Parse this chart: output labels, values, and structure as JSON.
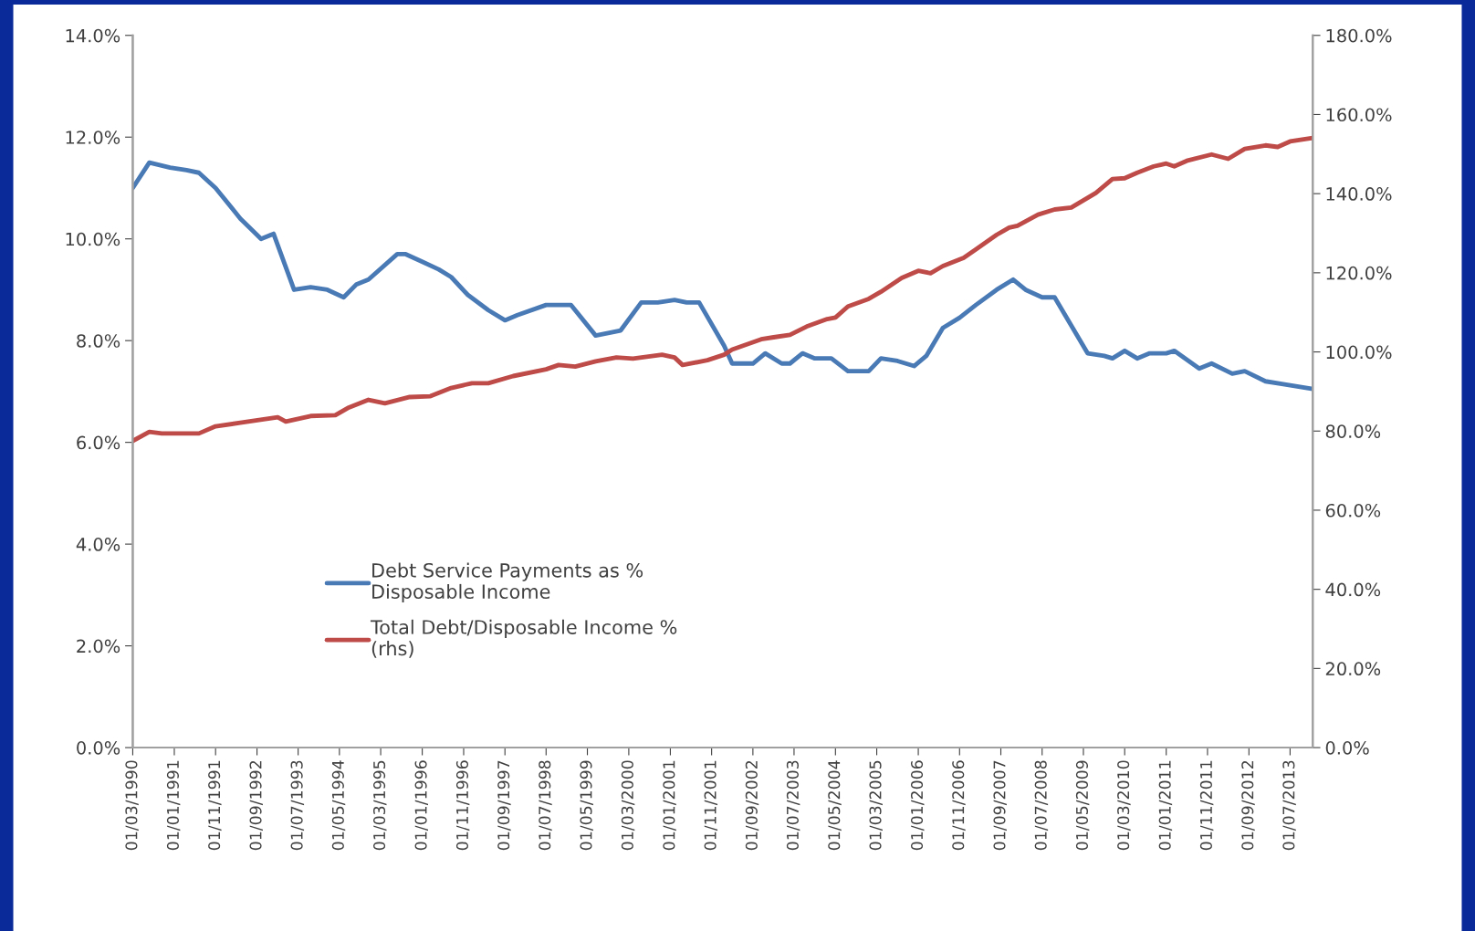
{
  "chart_data": {
    "type": "line",
    "xlim": [
      "1990-03-01",
      "2013-12-15"
    ],
    "xticks": [
      {
        "value": "1990-03-01",
        "label": "01/03/1990"
      },
      {
        "value": "1991-01-01",
        "label": "01/01/1991"
      },
      {
        "value": "1991-11-01",
        "label": "01/11/1991"
      },
      {
        "value": "1992-09-01",
        "label": "01/09/1992"
      },
      {
        "value": "1993-07-01",
        "label": "01/07/1993"
      },
      {
        "value": "1994-05-01",
        "label": "01/05/1994"
      },
      {
        "value": "1995-03-01",
        "label": "01/03/1995"
      },
      {
        "value": "1996-01-01",
        "label": "01/01/1996"
      },
      {
        "value": "1996-11-01",
        "label": "01/11/1996"
      },
      {
        "value": "1997-09-01",
        "label": "01/09/1997"
      },
      {
        "value": "1998-07-01",
        "label": "01/07/1998"
      },
      {
        "value": "1999-05-01",
        "label": "01/05/1999"
      },
      {
        "value": "2000-03-01",
        "label": "01/03/2000"
      },
      {
        "value": "2001-01-01",
        "label": "01/01/2001"
      },
      {
        "value": "2001-11-01",
        "label": "01/11/2001"
      },
      {
        "value": "2002-09-01",
        "label": "01/09/2002"
      },
      {
        "value": "2003-07-01",
        "label": "01/07/2003"
      },
      {
        "value": "2004-05-01",
        "label": "01/05/2004"
      },
      {
        "value": "2005-03-01",
        "label": "01/03/2005"
      },
      {
        "value": "2006-01-01",
        "label": "01/01/2006"
      },
      {
        "value": "2006-11-01",
        "label": "01/11/2006"
      },
      {
        "value": "2007-09-01",
        "label": "01/09/2007"
      },
      {
        "value": "2008-07-01",
        "label": "01/07/2008"
      },
      {
        "value": "2009-05-01",
        "label": "01/05/2009"
      },
      {
        "value": "2010-03-01",
        "label": "01/03/2010"
      },
      {
        "value": "2011-01-01",
        "label": "01/01/2011"
      },
      {
        "value": "2011-11-01",
        "label": "01/11/2011"
      },
      {
        "value": "2012-09-01",
        "label": "01/09/2012"
      },
      {
        "value": "2013-07-01",
        "label": "01/07/2013"
      }
    ],
    "ylim": [
      0,
      14
    ],
    "yticks": [
      {
        "value": 0,
        "label": "0.0%"
      },
      {
        "value": 2,
        "label": "2.0%"
      },
      {
        "value": 4,
        "label": "4.0%"
      },
      {
        "value": 6,
        "label": "6.0%"
      },
      {
        "value": 8,
        "label": "8.0%"
      },
      {
        "value": 10,
        "label": "10.0%"
      },
      {
        "value": 12,
        "label": "12.0%"
      },
      {
        "value": 14,
        "label": "14.0%"
      }
    ],
    "y2lim": [
      0,
      180
    ],
    "y2ticks": [
      {
        "value": 0,
        "label": "0.0%"
      },
      {
        "value": 20,
        "label": "20.0%"
      },
      {
        "value": 40,
        "label": "40.0%"
      },
      {
        "value": 60,
        "label": "60.0%"
      },
      {
        "value": 80,
        "label": "80.0%"
      },
      {
        "value": 100,
        "label": "100.0%"
      },
      {
        "value": 120,
        "label": "120.0%"
      },
      {
        "value": 140,
        "label": "140.0%"
      },
      {
        "value": 160,
        "label": "160.0%"
      },
      {
        "value": 180,
        "label": "180.0%"
      }
    ],
    "grid": false,
    "legend": "bottom left",
    "series": [
      {
        "name": "Debt Service Payments as %\nDisposable Income",
        "color": "#4a7ab5",
        "x": [
          "1990-03",
          "1990-07",
          "1990-12",
          "1991-04",
          "1991-07",
          "1991-11",
          "1992-05",
          "1992-10",
          "1993-01",
          "1993-06",
          "1993-10",
          "1994-02",
          "1994-06",
          "1994-09",
          "1994-12",
          "1995-07",
          "1995-09",
          "1996-01",
          "1996-05",
          "1996-08",
          "1996-12",
          "1997-05",
          "1997-09",
          "1997-12",
          "1998-07",
          "1999-01",
          "1999-07",
          "2000-01",
          "2000-06",
          "2000-10",
          "2001-02",
          "2001-05",
          "2001-08",
          "2002-02",
          "2002-04",
          "2002-09",
          "2002-12",
          "2003-04",
          "2003-06",
          "2003-09",
          "2003-12",
          "2004-04",
          "2004-08",
          "2005-01",
          "2005-04",
          "2005-08",
          "2005-12",
          "2006-03",
          "2006-07",
          "2006-11",
          "2007-03",
          "2007-08",
          "2007-12",
          "2008-03",
          "2008-07",
          "2008-10",
          "2009-06",
          "2009-10",
          "2009-12",
          "2010-03",
          "2010-06",
          "2010-09",
          "2011-01",
          "2011-03",
          "2011-09",
          "2011-12",
          "2012-05",
          "2012-08",
          "2013-01",
          "2013-05",
          "2013-12-15"
        ],
        "values": [
          11.0,
          11.5,
          11.4,
          11.35,
          11.3,
          11.0,
          10.4,
          10.0,
          10.1,
          9.0,
          9.05,
          9.0,
          8.85,
          9.1,
          9.2,
          9.7,
          9.7,
          9.55,
          9.4,
          9.25,
          8.9,
          8.6,
          8.4,
          8.5,
          8.7,
          8.7,
          8.1,
          8.2,
          8.75,
          8.75,
          8.8,
          8.75,
          8.75,
          7.9,
          7.55,
          7.55,
          7.75,
          7.55,
          7.55,
          7.75,
          7.65,
          7.65,
          7.4,
          7.4,
          7.65,
          7.6,
          7.5,
          7.7,
          8.25,
          8.45,
          8.7,
          9.0,
          9.2,
          9.0,
          8.85,
          8.85,
          7.75,
          7.7,
          7.65,
          7.8,
          7.65,
          7.75,
          7.75,
          7.8,
          7.45,
          7.55,
          7.35,
          7.4,
          7.2,
          7.15,
          7.05
        ]
      },
      {
        "name": "Total Debt/Disposable Income %\n(rhs)",
        "color": "#be4b48",
        "axis": "y2",
        "x": [
          "1990-03",
          "1990-07",
          "1990-10",
          "1991-07",
          "1991-11",
          "1992-05",
          "1993-02",
          "1993-04",
          "1993-10",
          "1994-04",
          "1994-07",
          "1994-12",
          "1995-04",
          "1995-10",
          "1996-03",
          "1996-08",
          "1997-01",
          "1997-05",
          "1997-11",
          "1998-07",
          "1998-10",
          "1999-02",
          "1999-07",
          "1999-12",
          "2000-04",
          "2000-11",
          "2001-02",
          "2001-04",
          "2001-10",
          "2002-02",
          "2002-04",
          "2002-11",
          "2003-02",
          "2003-06",
          "2003-10",
          "2004-03",
          "2004-05",
          "2004-08",
          "2005-01",
          "2005-04",
          "2005-09",
          "2006-01",
          "2006-04",
          "2006-07",
          "2006-12",
          "2007-03",
          "2007-08",
          "2007-11",
          "2008-01",
          "2008-06",
          "2008-10",
          "2009-02",
          "2009-08",
          "2009-12",
          "2010-03",
          "2010-06",
          "2010-10",
          "2011-01",
          "2011-03",
          "2011-06",
          "2011-12",
          "2012-04",
          "2012-08",
          "2013-01",
          "2013-04",
          "2013-07",
          "2013-12-15"
        ],
        "values": [
          77.5,
          79.8,
          79.4,
          79.4,
          81.2,
          82.1,
          83.5,
          82.4,
          83.8,
          84.0,
          85.8,
          87.9,
          87.0,
          88.6,
          88.8,
          90.9,
          92.1,
          92.1,
          93.9,
          95.6,
          96.7,
          96.3,
          97.6,
          98.6,
          98.3,
          99.3,
          98.6,
          96.7,
          97.9,
          99.3,
          100.6,
          103.2,
          103.7,
          104.3,
          106.4,
          108.3,
          108.7,
          111.5,
          113.4,
          115.2,
          118.7,
          120.5,
          119.9,
          121.7,
          123.8,
          125.9,
          129.6,
          131.4,
          131.9,
          134.7,
          136.0,
          136.5,
          140.2,
          143.7,
          143.9,
          145.3,
          146.9,
          147.6,
          146.9,
          148.3,
          149.9,
          148.8,
          151.3,
          152.2,
          151.8,
          153.2,
          154.1
        ]
      }
    ]
  }
}
